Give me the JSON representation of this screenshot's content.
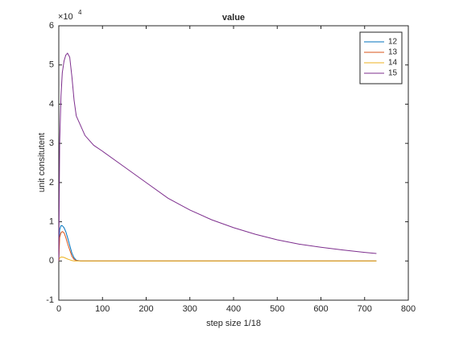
{
  "chart_data": {
    "type": "line",
    "title": "value",
    "xlabel": "step size 1/18",
    "ylabel": "unit consitutent",
    "y_multiplier": {
      "base": "×10",
      "exponent": "4"
    },
    "x": [
      0,
      2,
      5,
      8,
      12,
      16,
      20,
      25,
      30,
      35,
      40,
      50,
      60,
      80,
      100,
      150,
      200,
      250,
      300,
      350,
      400,
      450,
      500,
      550,
      600,
      650,
      700,
      727
    ],
    "series": [
      {
        "name": "12",
        "color": "#0072bd",
        "values": [
          0,
          0.8,
          0.9,
          0.9,
          0.85,
          0.75,
          0.6,
          0.4,
          0.2,
          0.08,
          0.02,
          0,
          0,
          0,
          0,
          0,
          0,
          0,
          0,
          0,
          0,
          0,
          0,
          0,
          0,
          0,
          0,
          0
        ]
      },
      {
        "name": "13",
        "color": "#d95319",
        "values": [
          0,
          0.6,
          0.72,
          0.75,
          0.72,
          0.6,
          0.45,
          0.28,
          0.12,
          0.04,
          0.01,
          0,
          0,
          0,
          0,
          0,
          0,
          0,
          0,
          0,
          0,
          0,
          0,
          0,
          0,
          0,
          0,
          0
        ]
      },
      {
        "name": "14",
        "color": "#edb120",
        "values": [
          0,
          0.08,
          0.1,
          0.1,
          0.09,
          0.07,
          0.05,
          0.03,
          0.01,
          0,
          0,
          0,
          0,
          0,
          0,
          0,
          0,
          0,
          0,
          0,
          0,
          0,
          0,
          0,
          0,
          0,
          0,
          0
        ]
      },
      {
        "name": "15",
        "color": "#7e2f8e",
        "values": [
          0,
          3.0,
          4.2,
          4.8,
          5.1,
          5.25,
          5.3,
          5.2,
          4.7,
          4.1,
          3.7,
          3.45,
          3.2,
          2.95,
          2.8,
          2.4,
          2.0,
          1.6,
          1.3,
          1.05,
          0.85,
          0.68,
          0.54,
          0.43,
          0.35,
          0.28,
          0.22,
          0.19
        ]
      }
    ],
    "xlim": [
      0,
      800
    ],
    "xticks": [
      0,
      100,
      200,
      300,
      400,
      500,
      600,
      700,
      800
    ],
    "ylim": [
      -1,
      6
    ],
    "yticks": [
      -1,
      0,
      1,
      2,
      3,
      4,
      5,
      6
    ],
    "legend": "northeast",
    "grid": false
  }
}
